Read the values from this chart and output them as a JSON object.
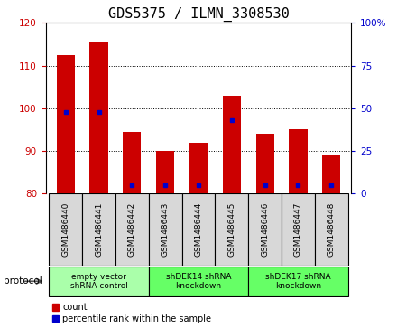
{
  "title": "GDS5375 / ILMN_3308530",
  "samples": [
    "GSM1486440",
    "GSM1486441",
    "GSM1486442",
    "GSM1486443",
    "GSM1486444",
    "GSM1486445",
    "GSM1486446",
    "GSM1486447",
    "GSM1486448"
  ],
  "counts": [
    112.5,
    115.5,
    94.5,
    90.0,
    92.0,
    103.0,
    94.0,
    95.0,
    89.0
  ],
  "percentiles": [
    48,
    48,
    5,
    5,
    5,
    43,
    5,
    5,
    5
  ],
  "ymin": 80,
  "ymax": 120,
  "yticks": [
    80,
    90,
    100,
    110,
    120
  ],
  "right_yticks": [
    0,
    25,
    50,
    75,
    100
  ],
  "groups": [
    {
      "label": "empty vector\nshRNA control",
      "start": 0,
      "end": 3,
      "color": "#aaffaa"
    },
    {
      "label": "shDEK14 shRNA\nknockdown",
      "start": 3,
      "end": 6,
      "color": "#66ff66"
    },
    {
      "label": "shDEK17 shRNA\nknockdown",
      "start": 6,
      "end": 9,
      "color": "#66ff66"
    }
  ],
  "bar_color": "#cc0000",
  "blue_color": "#0000cc",
  "bar_width": 0.55,
  "sample_bg_color": "#d8d8d8",
  "plot_bg": "#ffffff",
  "left_tick_color": "#cc0000",
  "right_tick_color": "#0000cc",
  "grid_color": "#000000",
  "title_fontsize": 11,
  "tick_fontsize": 7.5,
  "label_fontsize": 8
}
